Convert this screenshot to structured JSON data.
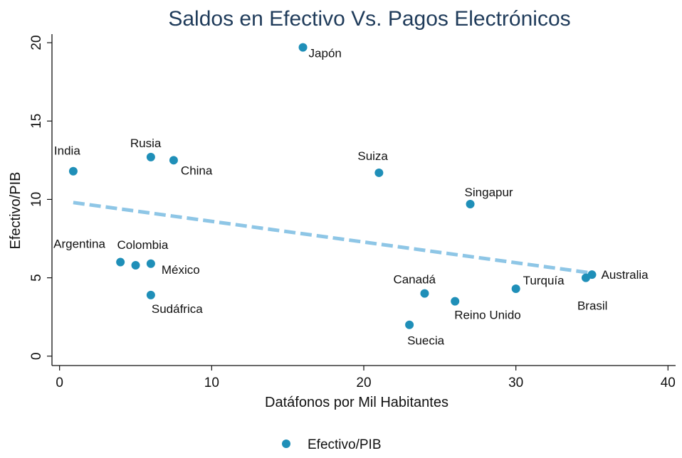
{
  "chart_data": {
    "type": "scatter",
    "title": "Saldos en Efectivo Vs. Pagos Electrónicos",
    "xlabel": "Datáfonos por Mil Habitantes",
    "ylabel": "Efectivo/PIB",
    "xlim": [
      -0.5,
      40.5
    ],
    "ylim": [
      -0.6,
      21
    ],
    "x_ticks": [
      0,
      10,
      20,
      30,
      40
    ],
    "y_ticks": [
      0,
      5,
      10,
      15,
      20
    ],
    "grid": false,
    "legend_position": "bottom-center",
    "colors": {
      "points": "#1f8fb8",
      "trend": "#8ec6e6",
      "title": "#1f3b5a",
      "axis": "#111111"
    },
    "series": [
      {
        "name": "Efectivo/PIB",
        "points": [
          {
            "label": "India",
            "x": 0.9,
            "y": 11.8,
            "label_pos": "above"
          },
          {
            "label": "Rusia",
            "x": 6.0,
            "y": 12.7,
            "label_pos": "above"
          },
          {
            "label": "China",
            "x": 7.5,
            "y": 12.5,
            "label_pos": "below-right"
          },
          {
            "label": "Japón",
            "x": 16.0,
            "y": 19.7,
            "label_pos": "below-right"
          },
          {
            "label": "Suiza",
            "x": 21.0,
            "y": 11.7,
            "label_pos": "above-left"
          },
          {
            "label": "Singapur",
            "x": 27.0,
            "y": 9.7,
            "label_pos": "above"
          },
          {
            "label": "Argentina",
            "x": 4.0,
            "y": 6.0,
            "label_pos": "above-left"
          },
          {
            "label": "Colombia",
            "x": 5.0,
            "y": 5.8,
            "label_pos": "above-right"
          },
          {
            "label": "México",
            "x": 6.0,
            "y": 5.9,
            "label_pos": "below-right"
          },
          {
            "label": "Sudáfrica",
            "x": 6.0,
            "y": 3.9,
            "label_pos": "below-right"
          },
          {
            "label": "Canadá",
            "x": 24.0,
            "y": 4.0,
            "label_pos": "above"
          },
          {
            "label": "Suecia",
            "x": 23.0,
            "y": 2.0,
            "label_pos": "below"
          },
          {
            "label": "Reino Unido",
            "x": 26.0,
            "y": 3.5,
            "label_pos": "below-right"
          },
          {
            "label": "Turquía",
            "x": 30.0,
            "y": 4.3,
            "label_pos": "above-right"
          },
          {
            "label": "Australia",
            "x": 35.0,
            "y": 5.2,
            "label_pos": "right"
          },
          {
            "label": "Brasil",
            "x": 34.6,
            "y": 5.0,
            "label_pos": "below"
          }
        ]
      }
    ],
    "trend_line": {
      "x": [
        0.9,
        35.0
      ],
      "y": [
        9.8,
        5.3
      ]
    }
  }
}
